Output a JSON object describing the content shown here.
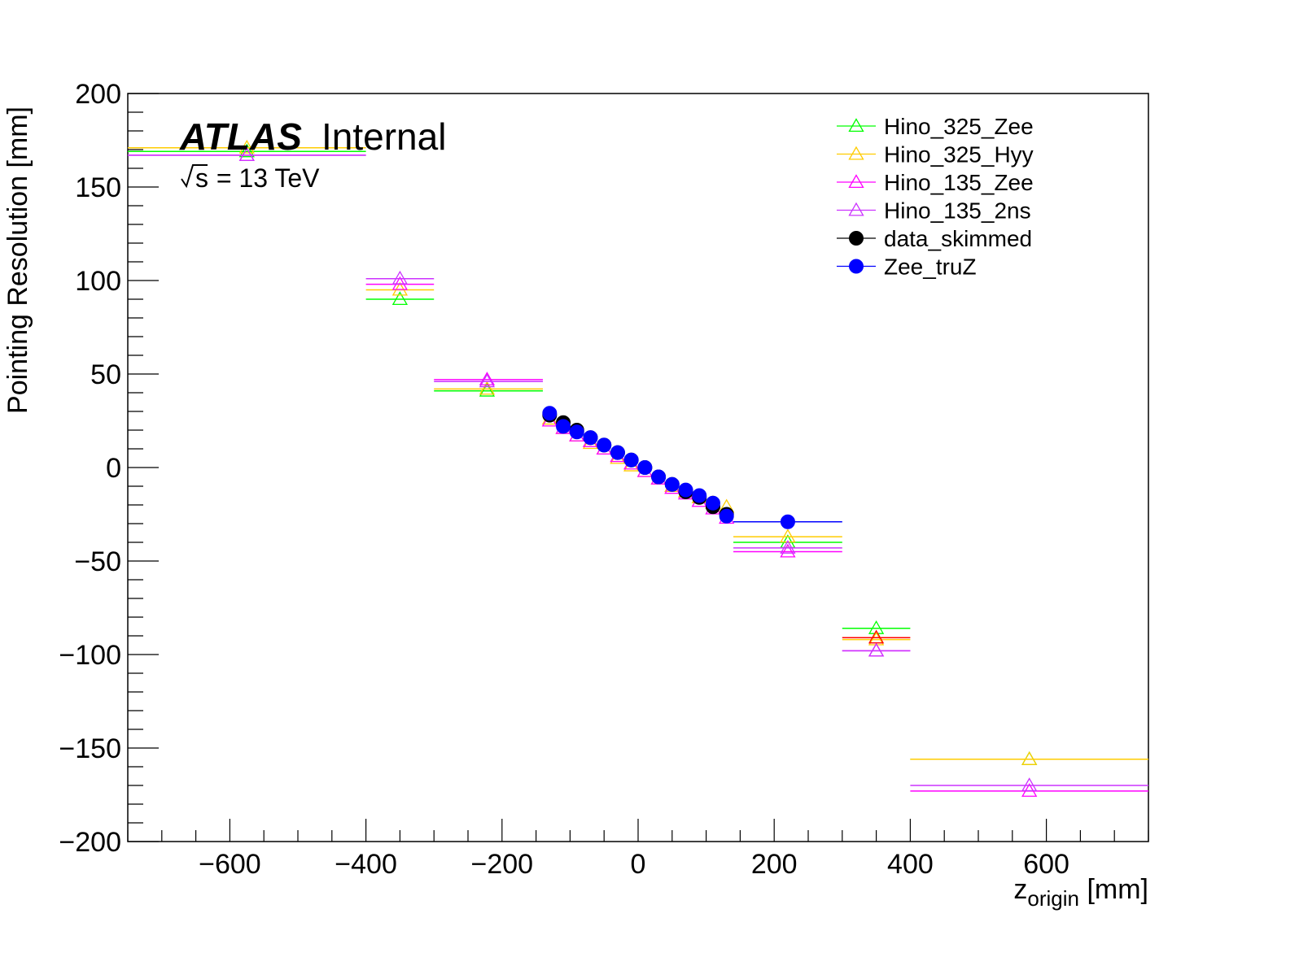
{
  "chart_data": {
    "type": "scatter",
    "title": "",
    "xlabel": "z",
    "xlabel_sub": "origin",
    "xlabel_unit": "[mm]",
    "ylabel": "Pointing Resolution [mm]",
    "xlim": [
      -750,
      750
    ],
    "ylim": [
      -200,
      200
    ],
    "x_major_ticks": [
      -600,
      -400,
      -200,
      0,
      200,
      400,
      600
    ],
    "x_tick_labels": [
      "−600",
      "−400",
      "−200",
      "0",
      "200",
      "400",
      "600"
    ],
    "y_major_ticks": [
      -200,
      -150,
      -100,
      -50,
      0,
      50,
      100,
      150,
      200
    ],
    "y_tick_labels": [
      "−200",
      "−150",
      "−100",
      "−50",
      "0",
      "50",
      "100",
      "150",
      "200"
    ],
    "grid": false,
    "legend_position": "top-right",
    "annotations": {
      "experiment": "ATLAS",
      "status": "Internal",
      "energy_sqrt": "s",
      "energy_rest": " = 13 TeV"
    },
    "series": [
      {
        "name": "Hino_325_Zee",
        "marker": "open-triangle",
        "color": "#00ff00",
        "points": [
          {
            "x": -575,
            "xmin": -750,
            "xmax": -400,
            "y": 169
          },
          {
            "x": -350,
            "xmin": -400,
            "xmax": -300,
            "y": 90
          },
          {
            "x": -222,
            "xmin": -300,
            "xmax": -140,
            "y": 41
          },
          {
            "x": 220,
            "xmin": 140,
            "xmax": 300,
            "y": -40
          },
          {
            "x": 350,
            "xmin": 300,
            "xmax": 400,
            "y": -86
          },
          {
            "x": 575,
            "xmin": 400,
            "xmax": 750,
            "y": -156
          }
        ]
      },
      {
        "name": "Hino_325_Hyy",
        "marker": "open-triangle",
        "color": "#ffcc00",
        "points": [
          {
            "x": -575,
            "xmin": -750,
            "xmax": -400,
            "y": 171
          },
          {
            "x": -350,
            "xmin": -400,
            "xmax": -300,
            "y": 95
          },
          {
            "x": -222,
            "xmin": -300,
            "xmax": -140,
            "y": 42
          },
          {
            "x": -130,
            "y": 26
          },
          {
            "x": -110,
            "y": 21
          },
          {
            "x": -90,
            "y": 17
          },
          {
            "x": -70,
            "y": 13
          },
          {
            "x": -50,
            "y": 10
          },
          {
            "x": -30,
            "y": 5
          },
          {
            "x": -10,
            "y": 1
          },
          {
            "x": 10,
            "y": -2
          },
          {
            "x": 30,
            "y": -6
          },
          {
            "x": 50,
            "y": -10
          },
          {
            "x": 70,
            "y": -13
          },
          {
            "x": 90,
            "y": -16
          },
          {
            "x": 110,
            "y": -19
          },
          {
            "x": 130,
            "y": -21
          },
          {
            "x": 220,
            "xmin": 140,
            "xmax": 300,
            "y": -37
          },
          {
            "x": 350,
            "xmin": 300,
            "xmax": 400,
            "y": -92
          },
          {
            "x": 575,
            "xmin": 400,
            "xmax": 750,
            "y": -156
          }
        ]
      },
      {
        "name": "Hino_135_Zee",
        "marker": "open-triangle",
        "color": "#ff00ff",
        "points": [
          {
            "x": -575,
            "xmin": -750,
            "xmax": -400,
            "y": 167
          },
          {
            "x": -350,
            "xmin": -400,
            "xmax": -300,
            "y": 98
          },
          {
            "x": -222,
            "xmin": -300,
            "xmax": -140,
            "y": 47
          },
          {
            "x": -130,
            "y": 25
          },
          {
            "x": -110,
            "y": 21
          },
          {
            "x": -90,
            "y": 17
          },
          {
            "x": -70,
            "y": 14
          },
          {
            "x": -50,
            "y": 10
          },
          {
            "x": -30,
            "y": 6
          },
          {
            "x": -10,
            "y": 2
          },
          {
            "x": 10,
            "y": -2
          },
          {
            "x": 30,
            "y": -6
          },
          {
            "x": 50,
            "y": -11
          },
          {
            "x": 70,
            "y": -14
          },
          {
            "x": 90,
            "y": -18
          },
          {
            "x": 110,
            "y": -22
          },
          {
            "x": 130,
            "y": -27
          },
          {
            "x": 220,
            "xmin": 140,
            "xmax": 300,
            "y": -45
          },
          {
            "x": 350,
            "xmin": 300,
            "xmax": 400,
            "y": -98
          },
          {
            "x": 575,
            "xmin": 400,
            "xmax": 750,
            "y": -173
          }
        ]
      },
      {
        "name": "Hino_135_2ns",
        "marker": "open-triangle",
        "color": "#cc33ff",
        "points": [
          {
            "x": -575,
            "xmin": -750,
            "xmax": -400,
            "y": 167
          },
          {
            "x": -350,
            "xmin": -400,
            "xmax": -300,
            "y": 101
          },
          {
            "x": -222,
            "xmin": -300,
            "xmax": -140,
            "y": 46
          },
          {
            "x": 220,
            "xmin": 140,
            "xmax": 300,
            "y": -43
          },
          {
            "x": 350,
            "xmin": 300,
            "xmax": 400,
            "y": -98
          },
          {
            "x": 575,
            "xmin": 400,
            "xmax": 750,
            "y": -170
          }
        ]
      },
      {
        "name": "data_skimmed",
        "marker": "filled-circle",
        "color": "#000000",
        "points": [
          {
            "x": -130,
            "y": 28
          },
          {
            "x": -110,
            "y": 24
          },
          {
            "x": -90,
            "y": 20
          },
          {
            "x": -70,
            "y": 16
          },
          {
            "x": -50,
            "y": 12
          },
          {
            "x": -30,
            "y": 8
          },
          {
            "x": -10,
            "y": 4
          },
          {
            "x": 10,
            "y": 0
          },
          {
            "x": 30,
            "y": -5
          },
          {
            "x": 50,
            "y": -9
          },
          {
            "x": 70,
            "y": -13
          },
          {
            "x": 90,
            "y": -16
          },
          {
            "x": 110,
            "y": -21
          },
          {
            "x": 130,
            "y": -25
          }
        ]
      },
      {
        "name": "Zee_truZ",
        "marker": "filled-circle",
        "color": "#0000ff",
        "points": [
          {
            "x": -130,
            "y": 29
          },
          {
            "x": -110,
            "y": 22
          },
          {
            "x": -90,
            "y": 19
          },
          {
            "x": -70,
            "y": 16
          },
          {
            "x": -50,
            "y": 12
          },
          {
            "x": -30,
            "y": 8
          },
          {
            "x": -10,
            "y": 4
          },
          {
            "x": 10,
            "y": 0
          },
          {
            "x": 30,
            "y": -5
          },
          {
            "x": 50,
            "y": -9
          },
          {
            "x": 70,
            "y": -12
          },
          {
            "x": 90,
            "y": -15
          },
          {
            "x": 110,
            "y": -19
          },
          {
            "x": 130,
            "y": -26
          },
          {
            "x": 220,
            "xmin": 140,
            "xmax": 300,
            "y": -29
          }
        ]
      },
      {
        "name": "",
        "marker": "open-triangle",
        "color": "#ff0000",
        "points": [
          {
            "x": 350,
            "xmin": 300,
            "xmax": 400,
            "y": -91
          }
        ]
      }
    ]
  }
}
